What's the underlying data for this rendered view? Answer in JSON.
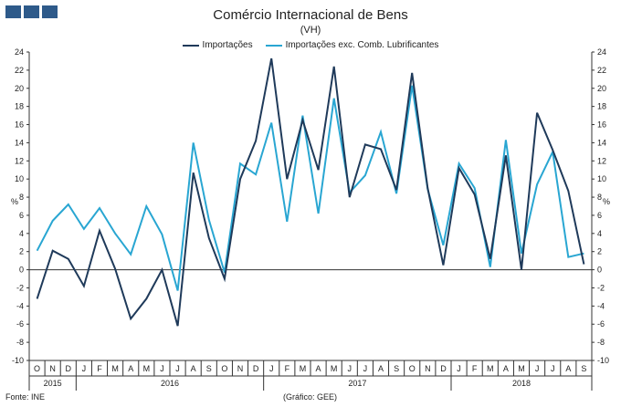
{
  "colors": {
    "logo": "#2e5a8a",
    "series1": "#1f3a5a",
    "series2": "#29a6d2"
  },
  "header": {
    "title": "Comércio Internacional de Bens",
    "subtitle": "(VH)"
  },
  "footer": {
    "source": "Fonte: INE",
    "credit": "(Gráfico: GEE)"
  },
  "chart_data": {
    "type": "line",
    "title": "Comércio Internacional de Bens",
    "subtitle": "(VH)",
    "ylabel_left": "%",
    "ylabel_right": "%",
    "ylim": [
      -10,
      24
    ],
    "yticks": [
      -10,
      -8,
      -6,
      -4,
      -2,
      0,
      2,
      4,
      6,
      8,
      10,
      12,
      14,
      16,
      18,
      20,
      22,
      24
    ],
    "grid": false,
    "legend_position": "top-center",
    "categories": [
      "O",
      "N",
      "D",
      "J",
      "F",
      "M",
      "A",
      "M",
      "J",
      "J",
      "A",
      "S",
      "O",
      "N",
      "D",
      "J",
      "F",
      "M",
      "A",
      "M",
      "J",
      "J",
      "A",
      "S",
      "O",
      "N",
      "D",
      "J",
      "F",
      "M",
      "A",
      "M",
      "J",
      "J",
      "A",
      "S"
    ],
    "year_labels": [
      {
        "label": "2015",
        "start": 0,
        "end": 2
      },
      {
        "label": "2016",
        "start": 3,
        "end": 14
      },
      {
        "label": "2017",
        "start": 15,
        "end": 26
      },
      {
        "label": "2018",
        "start": 27,
        "end": 35
      }
    ],
    "series": [
      {
        "name": "Importações",
        "color": "#1f3a5a",
        "values": [
          -3.2,
          2.1,
          1.2,
          -1.8,
          4.3,
          0.1,
          -5.4,
          -3.2,
          0.0,
          -6.2,
          10.7,
          3.5,
          -1.0,
          10.0,
          14.2,
          23.3,
          10.0,
          16.5,
          11.0,
          22.4,
          8.0,
          13.8,
          13.3,
          8.8,
          21.7,
          9.0,
          0.5,
          11.2,
          8.3,
          1.2,
          12.6,
          0.0,
          17.3,
          13.2,
          8.7,
          0.6
        ]
      },
      {
        "name": "Importações exc. Comb. Lubrificantes",
        "color": "#29a6d2",
        "values": [
          2.1,
          5.4,
          7.2,
          4.5,
          6.8,
          4.0,
          1.7,
          7.0,
          3.9,
          -2.3,
          14.0,
          5.5,
          -0.3,
          11.7,
          10.5,
          16.2,
          5.3,
          17.0,
          6.2,
          18.9,
          8.5,
          10.4,
          15.2,
          8.4,
          20.3,
          8.9,
          2.7,
          11.7,
          9.0,
          0.3,
          14.3,
          1.8,
          9.4,
          13.0,
          1.4,
          1.8
        ]
      }
    ]
  }
}
